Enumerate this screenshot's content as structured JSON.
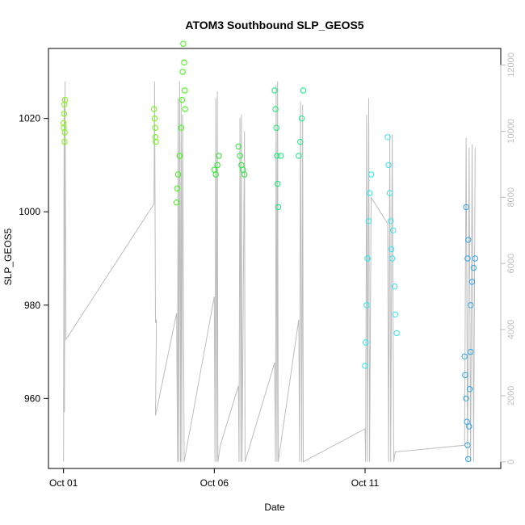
{
  "chart_data": {
    "type": "scatter",
    "title": "ATOM3 Southbound SLP_GEOS5",
    "xlabel": "Date",
    "ylabel": "SLP_GEOS5",
    "x_tick_labels": [
      "Oct 01",
      "Oct 06",
      "Oct 11"
    ],
    "x_ticks_day": [
      1,
      6,
      11
    ],
    "xlim_day": [
      0.5,
      15.5
    ],
    "ylim": [
      945,
      1035
    ],
    "y_ticks": [
      960,
      980,
      1000,
      1020
    ],
    "y2lim": [
      -200,
      12500
    ],
    "y2_ticks": [
      0,
      2000,
      4000,
      6000,
      8000,
      10000,
      12000
    ],
    "y2_description": "altitude (gray line, right axis)",
    "grid": false,
    "marker": "open-circle",
    "colors": {
      "axis": "#000000",
      "right_axis": "#bdbdbd",
      "altitude_line": "#bdbdbd"
    },
    "series": [
      {
        "color": "#7cfc00",
        "points": [
          [
            1.0,
            1019
          ],
          [
            1.02,
            1021
          ],
          [
            1.03,
            1023
          ],
          [
            1.05,
            1024
          ],
          [
            1.04,
            1017
          ],
          [
            1.03,
            1015
          ],
          [
            1.01,
            1018
          ]
        ]
      },
      {
        "color": "#66ff00",
        "points": [
          [
            4.0,
            1022
          ],
          [
            4.02,
            1020
          ],
          [
            4.04,
            1018
          ],
          [
            4.05,
            1016
          ],
          [
            4.06,
            1015
          ]
        ]
      },
      {
        "color": "#33ff00",
        "points": [
          [
            4.75,
            1002
          ],
          [
            4.77,
            1005
          ],
          [
            4.8,
            1008
          ],
          [
            4.85,
            1012
          ],
          [
            4.9,
            1018
          ],
          [
            4.93,
            1024
          ],
          [
            4.95,
            1030
          ],
          [
            4.97,
            1036
          ],
          [
            5.0,
            1032
          ],
          [
            5.02,
            1026
          ],
          [
            5.03,
            1022
          ]
        ]
      },
      {
        "color": "#22ee22",
        "points": [
          [
            6.0,
            1009
          ],
          [
            6.05,
            1008
          ],
          [
            6.1,
            1010
          ],
          [
            6.15,
            1012
          ]
        ]
      },
      {
        "color": "#22ee33",
        "points": [
          [
            6.8,
            1014
          ],
          [
            6.85,
            1012
          ],
          [
            6.9,
            1010
          ],
          [
            6.95,
            1009
          ],
          [
            7.0,
            1008
          ]
        ]
      },
      {
        "color": "#11ee77",
        "points": [
          [
            8.0,
            1026
          ],
          [
            8.03,
            1022
          ],
          [
            8.06,
            1018
          ],
          [
            8.08,
            1012
          ],
          [
            8.1,
            1006
          ],
          [
            8.12,
            1001
          ],
          [
            8.2,
            1012
          ]
        ]
      },
      {
        "color": "#11ee88",
        "points": [
          [
            8.8,
            1012
          ],
          [
            8.85,
            1015
          ],
          [
            8.9,
            1020
          ],
          [
            8.95,
            1026
          ]
        ]
      },
      {
        "color": "#22eeee",
        "points": [
          [
            11.0,
            967
          ],
          [
            11.02,
            972
          ],
          [
            11.05,
            980
          ],
          [
            11.08,
            990
          ],
          [
            11.12,
            998
          ],
          [
            11.15,
            1004
          ],
          [
            11.2,
            1008
          ]
        ]
      },
      {
        "color": "#33e6f5",
        "points": [
          [
            11.75,
            1016
          ],
          [
            11.78,
            1010
          ],
          [
            11.82,
            1004
          ],
          [
            11.85,
            998
          ],
          [
            11.87,
            992
          ],
          [
            11.9,
            990
          ],
          [
            11.93,
            996
          ],
          [
            11.98,
            984
          ],
          [
            12.0,
            978
          ],
          [
            12.05,
            974
          ]
        ]
      },
      {
        "color": "#2aa8f0",
        "points": [
          [
            14.3,
            969
          ],
          [
            14.32,
            965
          ],
          [
            14.35,
            960
          ],
          [
            14.38,
            955
          ],
          [
            14.4,
            950
          ],
          [
            14.42,
            947
          ],
          [
            14.45,
            954
          ],
          [
            14.47,
            962
          ],
          [
            14.5,
            970
          ],
          [
            14.4,
            990
          ],
          [
            14.42,
            994
          ],
          [
            14.35,
            1001
          ],
          [
            14.55,
            985
          ],
          [
            14.6,
            988
          ],
          [
            14.65,
            990
          ],
          [
            14.5,
            980
          ]
        ]
      }
    ],
    "altitude_track": [
      [
        1.0,
        9
      ],
      [
        1.02,
        11000
      ],
      [
        1.03,
        1500
      ],
      [
        1.05,
        11500
      ],
      [
        1.08,
        3700
      ],
      [
        4.0,
        7800
      ],
      [
        4.02,
        11500
      ],
      [
        4.05,
        4200
      ],
      [
        4.08,
        4300
      ],
      [
        4.05,
        1400
      ],
      [
        4.75,
        4500
      ],
      [
        4.78,
        0
      ],
      [
        4.8,
        11000
      ],
      [
        4.82,
        0
      ],
      [
        4.85,
        11500
      ],
      [
        4.88,
        0
      ],
      [
        4.9,
        11000
      ],
      [
        4.92,
        0
      ],
      [
        4.95,
        10500
      ],
      [
        5.0,
        0
      ],
      [
        6.0,
        5000
      ],
      [
        6.02,
        0
      ],
      [
        6.05,
        11000
      ],
      [
        6.08,
        0
      ],
      [
        6.1,
        11200
      ],
      [
        6.12,
        0
      ],
      [
        6.2,
        500
      ],
      [
        6.8,
        2300
      ],
      [
        6.82,
        0
      ],
      [
        6.85,
        10400
      ],
      [
        6.88,
        0
      ],
      [
        6.9,
        10500
      ],
      [
        6.92,
        0
      ],
      [
        7.0,
        10000
      ],
      [
        7.02,
        0
      ],
      [
        8.0,
        3000
      ],
      [
        8.03,
        0
      ],
      [
        8.05,
        11400
      ],
      [
        8.08,
        0
      ],
      [
        8.1,
        11500
      ],
      [
        8.12,
        0
      ],
      [
        8.15,
        200
      ],
      [
        8.8,
        4300
      ],
      [
        8.83,
        0
      ],
      [
        8.86,
        10900
      ],
      [
        8.9,
        0
      ],
      [
        8.93,
        10800
      ],
      [
        8.95,
        0
      ],
      [
        11.0,
        1000
      ],
      [
        11.02,
        0
      ],
      [
        11.05,
        10500
      ],
      [
        11.08,
        0
      ],
      [
        11.12,
        11000
      ],
      [
        11.15,
        0
      ],
      [
        11.2,
        8000
      ],
      [
        11.75,
        7200
      ],
      [
        11.78,
        0
      ],
      [
        11.82,
        9900
      ],
      [
        11.85,
        0
      ],
      [
        11.9,
        9900
      ],
      [
        11.95,
        0
      ],
      [
        12.0,
        300
      ],
      [
        14.3,
        500
      ],
      [
        14.35,
        9800
      ],
      [
        14.4,
        0
      ],
      [
        14.45,
        9500
      ],
      [
        14.5,
        0
      ],
      [
        14.55,
        9600
      ],
      [
        14.6,
        0
      ],
      [
        14.65,
        9500
      ]
    ]
  }
}
